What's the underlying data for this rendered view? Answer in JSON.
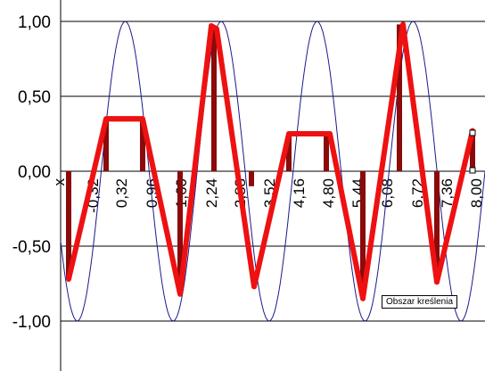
{
  "chart_data": {
    "type": "line",
    "y_ticks": [
      "1,00",
      "0,50",
      "0,00",
      "-0,50",
      "-1,00"
    ],
    "y_tick_values": [
      1,
      0.5,
      0,
      -0.5,
      -1
    ],
    "x_ticks": [
      "x",
      "-0,32",
      "0,32",
      "0,96",
      "1,60",
      "2,24",
      "2,88",
      "3,52",
      "4,16",
      "4,80",
      "5,44",
      "6,08",
      "6,72",
      "7,36",
      "8,00"
    ],
    "ylim": [
      -1,
      1
    ],
    "xlim": [
      -1,
      8.2
    ],
    "grid": "horizontal",
    "series": [
      {
        "kind": "sine",
        "color": "#1a1a8c",
        "x": [
          -1.0,
          -0.8,
          -0.6,
          -0.4,
          -0.2,
          0.0,
          0.2,
          0.4,
          0.6,
          0.8,
          1.0,
          1.2,
          1.4,
          1.6,
          1.8,
          2.0,
          2.2,
          2.4,
          2.6,
          2.8,
          3.0,
          3.2,
          3.4,
          3.6,
          3.8,
          4.0,
          4.2,
          4.4,
          4.6,
          4.8,
          5.0,
          5.2,
          5.4,
          5.6,
          5.8,
          6.0,
          6.2,
          6.4,
          6.6,
          6.8,
          7.0,
          7.2,
          7.4,
          7.6,
          7.8,
          8.0,
          8.2
        ],
        "y": [
          -0.5,
          -0.9,
          -1.0,
          -0.8,
          -0.2,
          0.35,
          0.85,
          1.0,
          0.8,
          0.2,
          -0.4,
          -0.85,
          -1.0,
          -0.75,
          -0.15,
          0.45,
          0.9,
          0.95,
          0.55,
          -0.05,
          -0.6,
          -0.95,
          -0.95,
          -0.6,
          0.0,
          0.55,
          0.95,
          1.0,
          0.65,
          0.05,
          -0.55,
          -0.9,
          -1.0,
          -0.7,
          -0.1,
          0.5,
          0.9,
          1.0,
          0.65,
          0.0,
          -0.6,
          -0.95,
          -1.0,
          -0.7,
          -0.1,
          0.45,
          0.85
        ]
      },
      {
        "kind": "sampled",
        "color": "#ee1111",
        "x": [
          -1.0,
          -0.37,
          -0.1,
          0.28,
          0.93,
          1.61,
          1.97,
          2.48,
          2.98,
          3.27,
          3.61,
          4.05,
          4.43,
          4.93,
          5.4,
          5.78,
          6.17,
          6.52
        ],
        "y": [
          -0.72,
          0.35,
          0.35,
          0.35,
          -0.82,
          0.97,
          0.95,
          -0.77,
          0.25,
          0.25,
          0.25,
          -0.85,
          0.98,
          -0.74,
          0.27,
          null,
          null,
          null
        ]
      },
      {
        "kind": "stems",
        "color": "#8b0a0a",
        "x": [
          -0.95,
          -0.35,
          -0.02,
          0.58,
          1.17,
          1.48,
          2.09,
          2.7,
          3.0,
          3.58,
          4.2,
          4.82,
          5.12,
          5.7
        ],
        "y": [
          -0.85,
          0.35,
          0.35,
          -0.8,
          0.97,
          0.95,
          -0.1,
          -0.77,
          0.3,
          0.25,
          -0.85,
          0.98,
          -0.72,
          0.27
        ]
      }
    ],
    "annotation": "Obszar kreślenia"
  }
}
